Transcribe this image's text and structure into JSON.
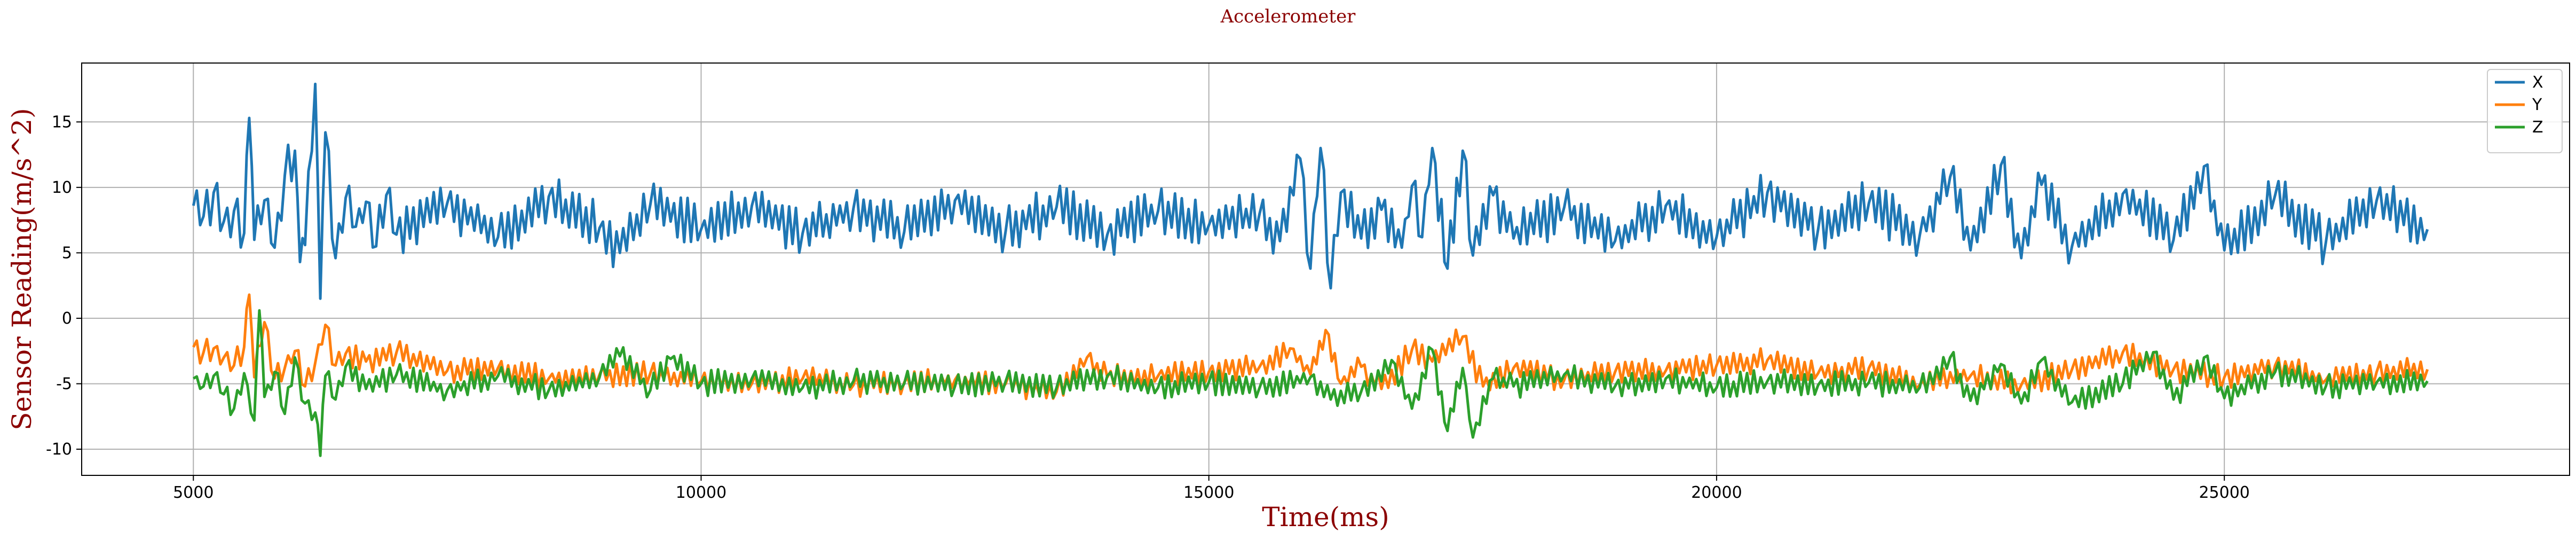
{
  "chart_data": {
    "type": "line",
    "title": "Accelerometer",
    "xlabel": "Time(ms)",
    "ylabel": "Sensor Reading(m/s^2)",
    "xlim": [
      3900,
      28400
    ],
    "ylim": [
      -12,
      19.5
    ],
    "xticks": [
      5000,
      10000,
      15000,
      20000,
      25000
    ],
    "yticks": [
      -10,
      -5,
      0,
      5,
      10,
      15
    ],
    "grid": true,
    "legend_position": "top-right",
    "x_range": [
      5000,
      27000
    ],
    "series": [
      {
        "name": "X",
        "color": "#1f77b4",
        "points": [
          [
            5000,
            8.6
          ],
          [
            5100,
            7.8
          ],
          [
            5200,
            9.6
          ],
          [
            5300,
            7.4
          ],
          [
            5400,
            8.2
          ],
          [
            5500,
            6.5
          ],
          [
            5550,
            15.3
          ],
          [
            5600,
            6.0
          ],
          [
            5700,
            9.0
          ],
          [
            5800,
            5.4
          ],
          [
            5900,
            10.9
          ],
          [
            6000,
            12.8
          ],
          [
            6050,
            4.3
          ],
          [
            6100,
            5.6
          ],
          [
            6200,
            17.9
          ],
          [
            6250,
            1.5
          ],
          [
            6300,
            14.2
          ],
          [
            6400,
            4.6
          ],
          [
            6500,
            9.2
          ],
          [
            6600,
            7.0
          ],
          [
            6700,
            8.9
          ],
          [
            6800,
            5.5
          ],
          [
            6900,
            9.4
          ],
          [
            7000,
            6.4
          ],
          [
            7500,
            8.8
          ],
          [
            8000,
            6.2
          ],
          [
            8500,
            9.3
          ],
          [
            9000,
            6.9
          ],
          [
            9200,
            5.0
          ],
          [
            9500,
            8.7
          ],
          [
            10000,
            6.8
          ],
          [
            10500,
            8.6
          ],
          [
            11000,
            6.5
          ],
          [
            11500,
            8.4
          ],
          [
            12000,
            6.6
          ],
          [
            12500,
            9.0
          ],
          [
            13000,
            6.7
          ],
          [
            13500,
            8.5
          ],
          [
            14000,
            6.4
          ],
          [
            14500,
            8.2
          ],
          [
            15000,
            7.1
          ],
          [
            15500,
            8.0
          ],
          [
            15700,
            5.9
          ],
          [
            15900,
            12.2
          ],
          [
            16000,
            3.8
          ],
          [
            16100,
            13.0
          ],
          [
            16200,
            2.3
          ],
          [
            16300,
            9.6
          ],
          [
            16500,
            6.1
          ],
          [
            16700,
            8.3
          ],
          [
            16900,
            5.4
          ],
          [
            17000,
            10.1
          ],
          [
            17100,
            6.2
          ],
          [
            17200,
            13.0
          ],
          [
            17350,
            3.8
          ],
          [
            17500,
            12.8
          ],
          [
            17600,
            4.8
          ],
          [
            17800,
            9.4
          ],
          [
            18000,
            6.1
          ],
          [
            18500,
            8.5
          ],
          [
            19000,
            5.9
          ],
          [
            19500,
            8.6
          ],
          [
            20000,
            6.2
          ],
          [
            20500,
            9.6
          ],
          [
            21000,
            6.8
          ],
          [
            21500,
            8.8
          ],
          [
            22000,
            6.3
          ],
          [
            22300,
            10.8
          ],
          [
            22500,
            5.2
          ],
          [
            22800,
            11.7
          ],
          [
            23000,
            4.6
          ],
          [
            23200,
            10.2
          ],
          [
            23500,
            5.5
          ],
          [
            24000,
            9.5
          ],
          [
            24500,
            6.0
          ],
          [
            24800,
            11.6
          ],
          [
            25000,
            5.2
          ],
          [
            25500,
            9.4
          ],
          [
            26000,
            5.8
          ],
          [
            26500,
            9.0
          ],
          [
            27000,
            6.8
          ]
        ]
      },
      {
        "name": "Y",
        "color": "#ff7f0e",
        "points": [
          [
            5000,
            -2.2
          ],
          [
            5100,
            -2.6
          ],
          [
            5200,
            -2.3
          ],
          [
            5300,
            -3.0
          ],
          [
            5400,
            -3.6
          ],
          [
            5500,
            -2.2
          ],
          [
            5550,
            1.8
          ],
          [
            5600,
            -4.5
          ],
          [
            5700,
            -0.3
          ],
          [
            5800,
            -4.6
          ],
          [
            5900,
            -3.8
          ],
          [
            6000,
            -2.5
          ],
          [
            6100,
            -5.2
          ],
          [
            6200,
            -3.4
          ],
          [
            6300,
            -0.5
          ],
          [
            6400,
            -3.6
          ],
          [
            6500,
            -2.7
          ],
          [
            6700,
            -3.3
          ],
          [
            7000,
            -2.6
          ],
          [
            7500,
            -4.0
          ],
          [
            8000,
            -3.8
          ],
          [
            8500,
            -4.6
          ],
          [
            9000,
            -4.3
          ],
          [
            9500,
            -4.2
          ],
          [
            10000,
            -4.8
          ],
          [
            10500,
            -5.0
          ],
          [
            11000,
            -4.6
          ],
          [
            11500,
            -5.1
          ],
          [
            12000,
            -4.9
          ],
          [
            12500,
            -4.7
          ],
          [
            13000,
            -5.0
          ],
          [
            13500,
            -5.6
          ],
          [
            13800,
            -3.0
          ],
          [
            14000,
            -4.5
          ],
          [
            14500,
            -4.4
          ],
          [
            15000,
            -4.1
          ],
          [
            15500,
            -3.7
          ],
          [
            15800,
            -2.3
          ],
          [
            16000,
            -4.3
          ],
          [
            16150,
            -0.9
          ],
          [
            16300,
            -5.0
          ],
          [
            16500,
            -3.7
          ],
          [
            16700,
            -5.4
          ],
          [
            17000,
            -2.4
          ],
          [
            17200,
            -3.3
          ],
          [
            17500,
            -1.4
          ],
          [
            17700,
            -5.2
          ],
          [
            18000,
            -3.8
          ],
          [
            18500,
            -4.7
          ],
          [
            19000,
            -4.1
          ],
          [
            19500,
            -4.0
          ],
          [
            20000,
            -3.6
          ],
          [
            20500,
            -3.2
          ],
          [
            21000,
            -4.2
          ],
          [
            21500,
            -3.8
          ],
          [
            22000,
            -5.1
          ],
          [
            22500,
            -4.4
          ],
          [
            23000,
            -5.1
          ],
          [
            23500,
            -3.9
          ],
          [
            24000,
            -2.6
          ],
          [
            24500,
            -3.9
          ],
          [
            25000,
            -4.5
          ],
          [
            25500,
            -3.6
          ],
          [
            26000,
            -4.7
          ],
          [
            26500,
            -4.1
          ],
          [
            27000,
            -3.9
          ]
        ]
      },
      {
        "name": "Z",
        "color": "#2ca02c",
        "points": [
          [
            5000,
            -4.6
          ],
          [
            5100,
            -5.2
          ],
          [
            5200,
            -4.4
          ],
          [
            5300,
            -5.8
          ],
          [
            5400,
            -6.9
          ],
          [
            5500,
            -4.2
          ],
          [
            5600,
            -7.8
          ],
          [
            5650,
            0.6
          ],
          [
            5700,
            -6.0
          ],
          [
            5800,
            -4.1
          ],
          [
            5900,
            -7.3
          ],
          [
            6000,
            -3.0
          ],
          [
            6100,
            -6.5
          ],
          [
            6200,
            -7.2
          ],
          [
            6250,
            -10.5
          ],
          [
            6300,
            -4.4
          ],
          [
            6400,
            -6.2
          ],
          [
            6500,
            -3.7
          ],
          [
            6700,
            -5.4
          ],
          [
            7000,
            -4.3
          ],
          [
            7500,
            -5.5
          ],
          [
            8000,
            -4.4
          ],
          [
            8500,
            -5.5
          ],
          [
            9000,
            -4.5
          ],
          [
            9200,
            -2.9
          ],
          [
            9500,
            -5.5
          ],
          [
            9700,
            -3.1
          ],
          [
            10000,
            -5.0
          ],
          [
            10500,
            -4.6
          ],
          [
            11000,
            -5.3
          ],
          [
            11500,
            -4.8
          ],
          [
            12000,
            -5.0
          ],
          [
            12500,
            -5.2
          ],
          [
            13000,
            -4.8
          ],
          [
            13500,
            -5.3
          ],
          [
            14000,
            -4.4
          ],
          [
            14500,
            -5.3
          ],
          [
            15000,
            -4.9
          ],
          [
            15500,
            -5.3
          ],
          [
            16000,
            -4.5
          ],
          [
            16200,
            -6.2
          ],
          [
            16500,
            -5.6
          ],
          [
            16800,
            -3.2
          ],
          [
            17000,
            -6.9
          ],
          [
            17200,
            -2.4
          ],
          [
            17350,
            -8.6
          ],
          [
            17500,
            -3.8
          ],
          [
            17600,
            -9.1
          ],
          [
            17800,
            -4.6
          ],
          [
            18000,
            -5.2
          ],
          [
            18500,
            -4.3
          ],
          [
            19000,
            -5.2
          ],
          [
            19500,
            -4.6
          ],
          [
            20000,
            -5.3
          ],
          [
            20500,
            -4.8
          ],
          [
            21000,
            -5.1
          ],
          [
            21500,
            -4.9
          ],
          [
            22000,
            -5.3
          ],
          [
            22300,
            -3.0
          ],
          [
            22500,
            -6.3
          ],
          [
            22800,
            -3.5
          ],
          [
            23000,
            -6.5
          ],
          [
            23200,
            -3.2
          ],
          [
            23500,
            -6.4
          ],
          [
            24000,
            -5.0
          ],
          [
            24300,
            -2.6
          ],
          [
            24500,
            -6.2
          ],
          [
            24800,
            -3.0
          ],
          [
            25000,
            -6.1
          ],
          [
            25500,
            -4.1
          ],
          [
            26000,
            -5.2
          ],
          [
            26500,
            -4.9
          ],
          [
            27000,
            -4.8
          ]
        ]
      }
    ]
  }
}
